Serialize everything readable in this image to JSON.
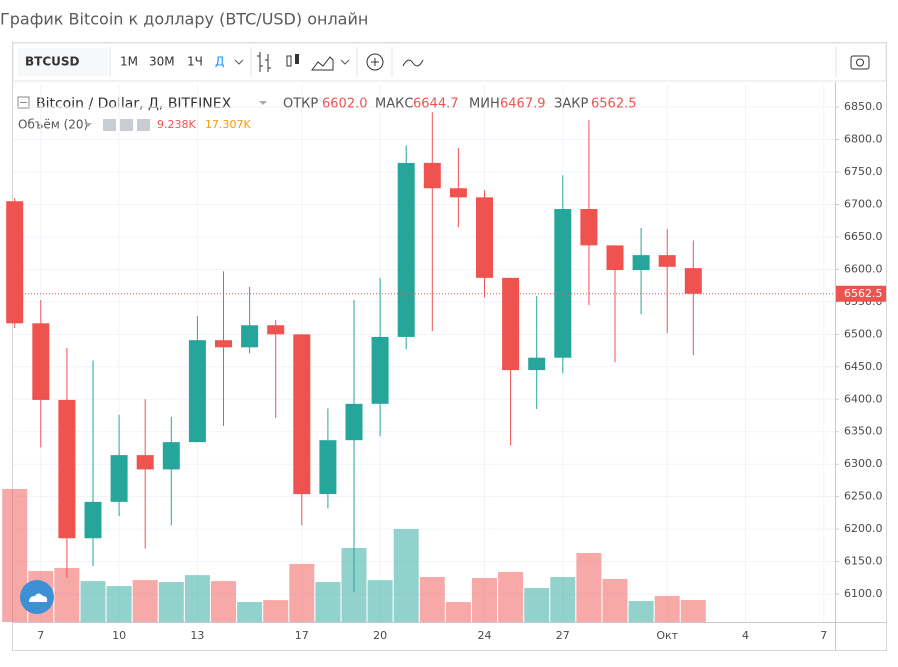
{
  "page_title": "График Bitcoin к доллару (BTC/USD) онлайн",
  "toolbar": {
    "symbol": "BTCUSD",
    "intervals": [
      "1М",
      "30М",
      "1Ч",
      "Д"
    ]
  },
  "chart_data": {
    "type": "candlestick",
    "title": "Bitcoin / Dollar, Д, BITFINEX",
    "ohlc_legend": [
      {
        "name": "ОТКР",
        "value": 6602.0,
        "label": "6602.0"
      },
      {
        "name": "МАКС",
        "value": 6644.7,
        "label": "6644.7"
      },
      {
        "name": "МИН",
        "value": 6467.9,
        "label": "6467.9"
      },
      {
        "name": "ЗАКР",
        "value": 6562.5,
        "label": "6562.5"
      }
    ],
    "categories": [
      null,
      "7",
      null,
      null,
      "10",
      null,
      null,
      "13",
      null,
      null,
      null,
      "17",
      null,
      null,
      "20",
      null,
      null,
      null,
      "24",
      null,
      null,
      "27",
      null,
      null,
      null,
      "Окт",
      null,
      null,
      "4",
      null,
      null,
      "7"
    ],
    "open": [
      6705,
      6517,
      6399,
      6186,
      6242,
      6314,
      6292,
      6334,
      6491,
      6480,
      6514,
      6500,
      6254,
      6337,
      6393,
      6496,
      6764,
      6725,
      6711,
      6587,
      6445,
      6464,
      6693,
      6637,
      6599,
      6622,
      6602.0,
      null,
      null,
      null,
      null,
      null
    ],
    "high": [
      6710,
      6553,
      6479,
      6460,
      6376,
      6400,
      6373,
      6528,
      6597,
      6573,
      6522,
      6500,
      6386,
      6553,
      6587,
      6791,
      6842,
      6787,
      6722,
      6587,
      6559,
      6745,
      6830,
      6637,
      6664,
      6662,
      6644.7,
      null,
      null,
      null,
      null,
      null
    ],
    "low": [
      6510,
      6326,
      6125,
      6143,
      6220,
      6170,
      6206,
      6334,
      6359,
      6471,
      6371,
      6206,
      6232,
      6103,
      6343,
      6477,
      6505,
      6665,
      6557,
      6329,
      6385,
      6440,
      6545,
      6457,
      6531,
      6502,
      6467.9,
      null,
      null,
      null,
      null,
      null
    ],
    "close": [
      6517,
      6399,
      6186,
      6242,
      6314,
      6292,
      6334,
      6491,
      6480,
      6514,
      6500,
      6254,
      6337,
      6393,
      6496,
      6764,
      6725,
      6711,
      6587,
      6445,
      6464,
      6693,
      6637,
      6599,
      6622,
      6604,
      6562.5,
      null,
      null,
      null,
      null,
      null
    ],
    "volume": {
      "name": "Объём (20)",
      "values": [
        55900,
        21400,
        22700,
        17200,
        15100,
        17600,
        16800,
        19700,
        17200,
        8400,
        9200,
        24400,
        16800,
        31100,
        17600,
        39100,
        18900,
        8400,
        18500,
        21000,
        14300,
        18900,
        29000,
        18100,
        8800,
        10900,
        9238,
        null,
        null,
        null,
        null,
        null
      ]
    },
    "volume_legend": [
      {
        "value": 9238,
        "label": "9.238K",
        "color": "#ef5350"
      },
      {
        "value": 17307,
        "label": "17.307K",
        "color": "#ff9800"
      }
    ],
    "up_color": "#26a69a",
    "down_color": "#ef5350",
    "ylim": [
      6057,
      6884
    ],
    "yticks": [
      {
        "value": 6100,
        "label": "6100.0"
      },
      {
        "value": 6150,
        "label": "6150.0"
      },
      {
        "value": 6200,
        "label": "6200.0"
      },
      {
        "value": 6250,
        "label": "6250.0"
      },
      {
        "value": 6300,
        "label": "6300.0"
      },
      {
        "value": 6350,
        "label": "6350.0"
      },
      {
        "value": 6400,
        "label": "6400.0"
      },
      {
        "value": 6450,
        "label": "6450.0"
      },
      {
        "value": 6500,
        "label": "6500.0"
      },
      {
        "value": 6550,
        "label": "6550.0"
      },
      {
        "value": 6600,
        "label": "6600.0"
      },
      {
        "value": 6650,
        "label": "6650.0"
      },
      {
        "value": 6700,
        "label": "6700.0"
      },
      {
        "value": 6750,
        "label": "6750.0"
      },
      {
        "value": 6800,
        "label": "6800.0"
      },
      {
        "value": 6850,
        "label": "6850.0"
      }
    ],
    "last_price": {
      "value": 6562.5,
      "label": "6562.5",
      "color": "#ef5350"
    },
    "grid": true
  }
}
